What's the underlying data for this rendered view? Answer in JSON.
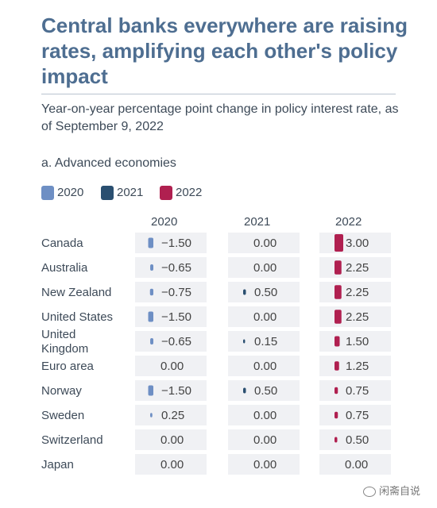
{
  "header": {
    "title": "Central banks everywhere are raising rates, amplifying each other's policy impact",
    "subtitle": "Year-on-year percentage point change in policy interest rate, as of September 9, 2022",
    "section": "a. Advanced economies"
  },
  "watermark": "闲斋自说",
  "chart_data": {
    "type": "table",
    "title": "Central banks everywhere are raising rates, amplifying each other's policy impact",
    "subtitle": "Year-on-year percentage point change in policy interest rate, as of September 9, 2022",
    "legend_position": "top-left",
    "grid": false,
    "value_range": [
      -1.5,
      3.0
    ],
    "categories": [
      "Canada",
      "Australia",
      "New Zealand",
      "United States",
      "United Kingdom",
      "Euro area",
      "Norway",
      "Sweden",
      "Switzerland",
      "Japan"
    ],
    "series": [
      {
        "name": "2020",
        "color": "#6e8fc4",
        "values": [
          -1.5,
          -0.65,
          -0.75,
          -1.5,
          -0.65,
          0.0,
          -1.5,
          0.25,
          0.0,
          0.0
        ],
        "labels": [
          "−1.50",
          "−0.65",
          "−0.75",
          "−1.50",
          "−0.65",
          "0.00",
          "−1.50",
          "0.25",
          "0.00",
          "0.00"
        ]
      },
      {
        "name": "2021",
        "color": "#2a4f70",
        "values": [
          0.0,
          0.0,
          0.5,
          0.0,
          0.15,
          0.0,
          0.5,
          0.0,
          0.0,
          0.0
        ],
        "labels": [
          "0.00",
          "0.00",
          "0.50",
          "0.00",
          "0.15",
          "0.00",
          "0.50",
          "0.00",
          "0.00",
          "0.00"
        ]
      },
      {
        "name": "2022",
        "color": "#b02050",
        "values": [
          3.0,
          2.25,
          2.25,
          2.25,
          1.5,
          1.25,
          0.75,
          0.75,
          0.5,
          0.0
        ],
        "labels": [
          "3.00",
          "2.25",
          "2.25",
          "2.25",
          "1.50",
          "1.25",
          "0.75",
          "0.75",
          "0.50",
          "0.00"
        ]
      }
    ]
  }
}
